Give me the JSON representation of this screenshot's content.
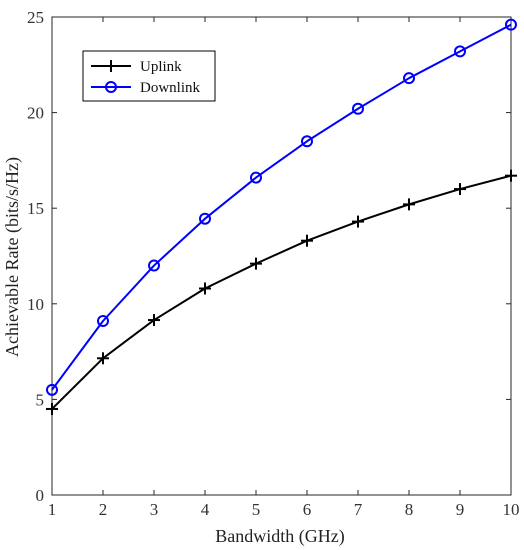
{
  "chart_data": {
    "type": "line",
    "xlabel": "Bandwidth (GHz)",
    "ylabel": "Achievable Rate (bits/s/Hz)",
    "xlim": [
      1,
      10
    ],
    "ylim": [
      0,
      25
    ],
    "xticks": [
      1,
      2,
      3,
      4,
      5,
      6,
      7,
      8,
      9,
      10
    ],
    "yticks": [
      0,
      5,
      10,
      15,
      20,
      25
    ],
    "grid": false,
    "legend_position": "top-left",
    "x": [
      1,
      2,
      3,
      4,
      5,
      6,
      7,
      8,
      9,
      10
    ],
    "series": [
      {
        "name": "Uplink",
        "color": "#000000",
        "marker": "plus",
        "values": [
          4.5,
          7.15,
          9.15,
          10.8,
          12.1,
          13.3,
          14.3,
          15.2,
          16.0,
          16.7
        ]
      },
      {
        "name": "Downlink",
        "color": "#0000ff",
        "marker": "circle",
        "values": [
          5.5,
          9.1,
          12.0,
          14.45,
          16.6,
          18.5,
          20.2,
          21.8,
          23.2,
          24.6
        ]
      }
    ]
  }
}
